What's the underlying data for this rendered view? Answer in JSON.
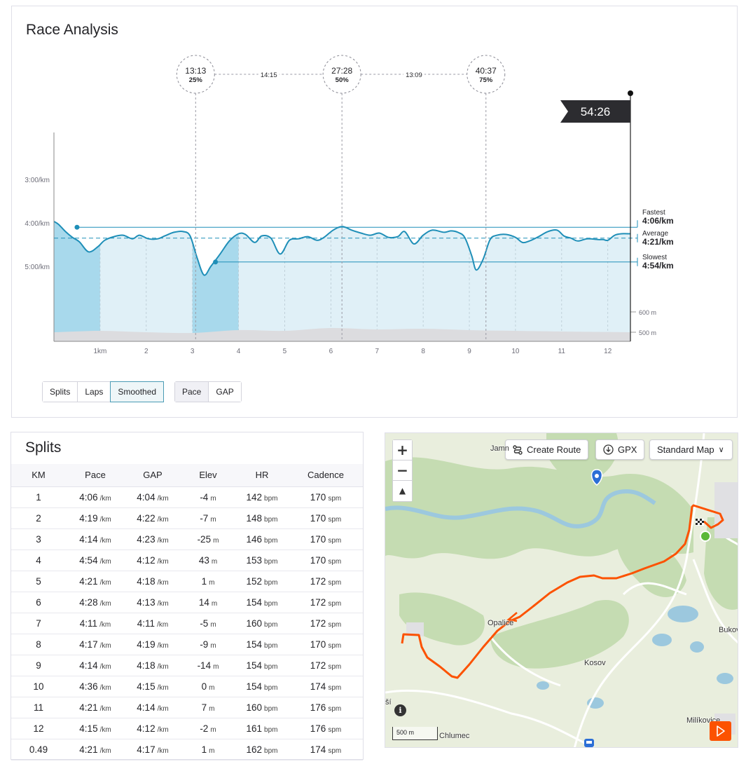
{
  "analysis": {
    "title": "Race Analysis",
    "finish_time": "54:26",
    "markers": [
      {
        "time": "13:13",
        "pct": "25%"
      },
      {
        "time": "27:28",
        "pct": "50%"
      },
      {
        "time": "40:37",
        "pct": "75%"
      }
    ],
    "gaps": [
      "14:15",
      "13:09"
    ],
    "stats": {
      "fastest_label": "Fastest",
      "fastest_value": "4:06/km",
      "average_label": "Average",
      "average_value": "4:21/km",
      "slowest_label": "Slowest",
      "slowest_value": "4:54/km"
    },
    "mode_buttons": [
      "Splits",
      "Laps",
      "Smoothed"
    ],
    "metric_buttons": [
      "Pace",
      "GAP"
    ],
    "colors": {
      "line": "#1f8fb8",
      "fill_light": "#e0f0f7",
      "fill_dark": "#a8d9ec",
      "elev": "#dcdcdf"
    }
  },
  "chart_data": {
    "type": "area",
    "xlabel": "",
    "ylabel": "",
    "x_ticks": [
      "1km",
      "2",
      "3",
      "4",
      "5",
      "6",
      "7",
      "8",
      "9",
      "10",
      "11",
      "12"
    ],
    "y_ticks": [
      "3:00/km",
      "4:00/km",
      "5:00/km"
    ],
    "y_unit_ticks_seconds": [
      180,
      240,
      300
    ],
    "elev_ticks": [
      "600 m",
      "500 m"
    ],
    "xlim": [
      0,
      12.49
    ],
    "pace_series": [
      [
        0.0,
        238
      ],
      [
        0.1,
        242
      ],
      [
        0.25,
        252
      ],
      [
        0.4,
        260
      ],
      [
        0.55,
        266
      ],
      [
        0.75,
        280
      ],
      [
        0.95,
        273
      ],
      [
        1.1,
        264
      ],
      [
        1.3,
        259
      ],
      [
        1.5,
        257
      ],
      [
        1.7,
        262
      ],
      [
        1.85,
        257
      ],
      [
        2.05,
        262
      ],
      [
        2.25,
        262
      ],
      [
        2.4,
        258
      ],
      [
        2.6,
        253
      ],
      [
        2.8,
        252
      ],
      [
        2.95,
        258
      ],
      [
        3.1,
        288
      ],
      [
        3.25,
        312
      ],
      [
        3.4,
        300
      ],
      [
        3.6,
        283
      ],
      [
        3.8,
        265
      ],
      [
        4.0,
        255
      ],
      [
        4.15,
        256
      ],
      [
        4.35,
        267
      ],
      [
        4.5,
        258
      ],
      [
        4.7,
        261
      ],
      [
        4.9,
        283
      ],
      [
        5.1,
        264
      ],
      [
        5.3,
        262
      ],
      [
        5.5,
        259
      ],
      [
        5.7,
        264
      ],
      [
        5.85,
        260
      ],
      [
        6.05,
        250
      ],
      [
        6.25,
        245
      ],
      [
        6.45,
        250
      ],
      [
        6.65,
        254
      ],
      [
        6.85,
        257
      ],
      [
        7.05,
        254
      ],
      [
        7.25,
        260
      ],
      [
        7.45,
        259
      ],
      [
        7.6,
        252
      ],
      [
        7.8,
        269
      ],
      [
        8.0,
        257
      ],
      [
        8.2,
        250
      ],
      [
        8.45,
        253
      ],
      [
        8.6,
        251
      ],
      [
        8.75,
        253
      ],
      [
        8.9,
        260
      ],
      [
        9.05,
        285
      ],
      [
        9.15,
        305
      ],
      [
        9.3,
        290
      ],
      [
        9.45,
        263
      ],
      [
        9.6,
        257
      ],
      [
        9.8,
        256
      ],
      [
        10.0,
        260
      ],
      [
        10.15,
        267
      ],
      [
        10.3,
        265
      ],
      [
        10.5,
        259
      ],
      [
        10.7,
        252
      ],
      [
        10.9,
        250
      ],
      [
        11.05,
        258
      ],
      [
        11.2,
        261
      ],
      [
        11.35,
        265
      ],
      [
        11.55,
        262
      ],
      [
        11.8,
        263
      ],
      [
        11.9,
        263
      ],
      [
        12.0,
        264
      ],
      [
        12.15,
        257
      ],
      [
        12.3,
        255
      ],
      [
        12.49,
        255
      ]
    ],
    "highlight_fastest_km": 1,
    "highlight_slowest_km": 4,
    "fastest_pace_s": 246,
    "average_pace_s": 261,
    "slowest_pace_s": 294,
    "quarter_km": [
      3.07,
      6.24,
      9.36
    ],
    "finish_km": 12.49
  },
  "splits": {
    "title": "Splits",
    "headers": [
      "KM",
      "Pace",
      "GAP",
      "Elev",
      "HR",
      "Cadence"
    ],
    "units": {
      "pace": "/km",
      "elev": "m",
      "hr": "bpm",
      "cad": "spm"
    },
    "rows": [
      {
        "km": "1",
        "pace": "4:06",
        "gap": "4:04",
        "elev": "-4",
        "hr": "142",
        "cad": "170"
      },
      {
        "km": "2",
        "pace": "4:19",
        "gap": "4:22",
        "elev": "-7",
        "hr": "148",
        "cad": "170"
      },
      {
        "km": "3",
        "pace": "4:14",
        "gap": "4:23",
        "elev": "-25",
        "hr": "146",
        "cad": "170"
      },
      {
        "km": "4",
        "pace": "4:54",
        "gap": "4:12",
        "elev": "43",
        "hr": "153",
        "cad": "170"
      },
      {
        "km": "5",
        "pace": "4:21",
        "gap": "4:18",
        "elev": "1",
        "hr": "152",
        "cad": "172"
      },
      {
        "km": "6",
        "pace": "4:28",
        "gap": "4:13",
        "elev": "14",
        "hr": "154",
        "cad": "172"
      },
      {
        "km": "7",
        "pace": "4:11",
        "gap": "4:11",
        "elev": "-5",
        "hr": "160",
        "cad": "172"
      },
      {
        "km": "8",
        "pace": "4:17",
        "gap": "4:19",
        "elev": "-9",
        "hr": "154",
        "cad": "170"
      },
      {
        "km": "9",
        "pace": "4:14",
        "gap": "4:18",
        "elev": "-14",
        "hr": "154",
        "cad": "172"
      },
      {
        "km": "10",
        "pace": "4:36",
        "gap": "4:15",
        "elev": "0",
        "hr": "154",
        "cad": "174"
      },
      {
        "km": "11",
        "pace": "4:21",
        "gap": "4:14",
        "elev": "7",
        "hr": "160",
        "cad": "176"
      },
      {
        "km": "12",
        "pace": "4:15",
        "gap": "4:12",
        "elev": "-2",
        "hr": "161",
        "cad": "176"
      },
      {
        "km": "0.49",
        "pace": "4:21",
        "gap": "4:17",
        "elev": "1",
        "hr": "162",
        "cad": "174"
      }
    ]
  },
  "map": {
    "create_route": "Create Route",
    "gpx": "GPX",
    "map_style": "Standard Map",
    "scale": "500 m",
    "places": [
      "Jamn",
      "Opalice",
      "Kosov",
      "Chlumec",
      "Bukov",
      "Milíkovice",
      "ší"
    ],
    "route_color": "#fc5200"
  }
}
